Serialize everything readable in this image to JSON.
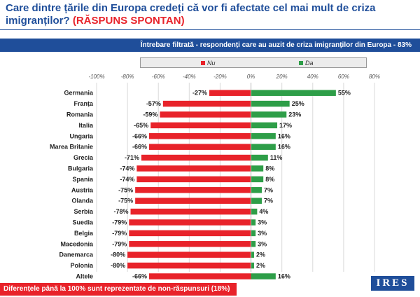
{
  "header": {
    "title": "Care dintre țările din Europa credeți că vor fi afectate cel mai mult de criza imigranților?",
    "title_highlight": "(RĂSPUNS SPONTAN)",
    "filter_note": "Întrebare filtrată - respondenți care au auzit de criza imigranților din Europa - 83%"
  },
  "footer": {
    "note": "Diferențele până la 100% sunt reprezentate de non-răspunsuri (18%)",
    "logo_text": "IRES"
  },
  "colors": {
    "nu": "#e8232a",
    "da": "#2e9e48",
    "title": "#1f4e9a"
  },
  "chart_data": {
    "type": "bar",
    "orientation": "horizontal-diverging",
    "categories": [
      "Germania",
      "Franța",
      "Romania",
      "Italia",
      "Ungaria",
      "Marea Britanie",
      "Grecia",
      "Bulgaria",
      "Spania",
      "Austria",
      "Olanda",
      "Serbia",
      "Suedia",
      "Belgia",
      "Macedonia",
      "Danemarca",
      "Polonia",
      "Altele"
    ],
    "series": [
      {
        "name": "Nu",
        "values": [
          -27,
          -57,
          -59,
          -65,
          -66,
          -66,
          -71,
          -74,
          -74,
          -75,
          -75,
          -78,
          -79,
          -79,
          -79,
          -80,
          -80,
          -66
        ]
      },
      {
        "name": "Da",
        "values": [
          55,
          25,
          23,
          17,
          16,
          16,
          11,
          8,
          8,
          7,
          7,
          4,
          3,
          3,
          3,
          2,
          2,
          16
        ]
      }
    ],
    "xlim": [
      -100,
      80
    ],
    "x_ticks": [
      -100,
      -80,
      -60,
      -40,
      -20,
      0,
      20,
      40,
      60,
      80
    ],
    "grid": true,
    "legend": "top"
  }
}
